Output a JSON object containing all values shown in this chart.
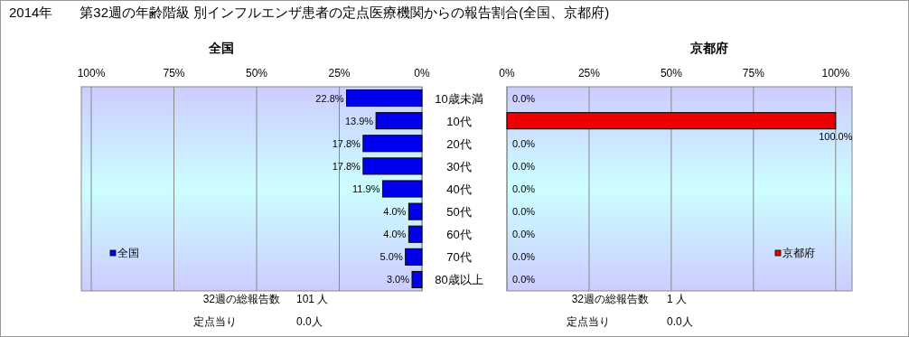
{
  "chart_data": [
    {
      "type": "bar",
      "orientation": "horizontal",
      "title": "2014年　　第32週の年齢階級 別インフルエンザ患者の定点医療機関からの報告割合(全国、京都府)",
      "subtitle": "全国",
      "categories": [
        "10歳未満",
        "10代",
        "20代",
        "30代",
        "40代",
        "50代",
        "60代",
        "70代",
        "80歳以上"
      ],
      "series": [
        {
          "name": "全国",
          "color": "#0000ee",
          "values": [
            22.8,
            13.9,
            17.8,
            17.8,
            11.9,
            4.0,
            4.0,
            5.0,
            3.0
          ],
          "value_labels": [
            "22.8%",
            "13.9%",
            "17.8%",
            "17.8%",
            "11.9%",
            "4.0%",
            "4.0%",
            "5.0%",
            "3.0%"
          ]
        }
      ],
      "xlim": [
        103,
        0
      ],
      "xticks": [
        {
          "value": 100,
          "label": "100%"
        },
        {
          "value": 75,
          "label": "75%"
        },
        {
          "value": 50,
          "label": "50%"
        },
        {
          "value": 25,
          "label": "25%"
        },
        {
          "value": 0,
          "label": "0%"
        }
      ],
      "grid": "x",
      "legend": "bottom left",
      "annotations": [
        "32週の総報告数",
        "101 人",
        "定点当り",
        "0.0人"
      ]
    },
    {
      "type": "bar",
      "orientation": "horizontal",
      "subtitle": "京都府",
      "categories": [
        null,
        null,
        null,
        null,
        null,
        null,
        null,
        null,
        null
      ],
      "series": [
        {
          "name": "京都府",
          "color": "#ee0000",
          "values": [
            0,
            100,
            0,
            0,
            0,
            0,
            0,
            0,
            0
          ],
          "value_labels": [
            "0.0%",
            "100.0%",
            "0.0%",
            "0.0%",
            "0.0%",
            "0.0%",
            "0.0%",
            "0.0%",
            "0.0%"
          ]
        }
      ],
      "xlim": [
        0,
        105
      ],
      "xticks": [
        {
          "value": 0,
          "label": "0%"
        },
        {
          "value": 25,
          "label": "25%"
        },
        {
          "value": 50,
          "label": "50%"
        },
        {
          "value": 75,
          "label": "75%"
        },
        {
          "value": 100,
          "label": "100%"
        }
      ],
      "grid": "x",
      "legend": "bottom right",
      "tick_labels": "x",
      "annotations": [
        "32週の総報告数",
        "1 人",
        "定点当り",
        "0.0人"
      ]
    }
  ]
}
